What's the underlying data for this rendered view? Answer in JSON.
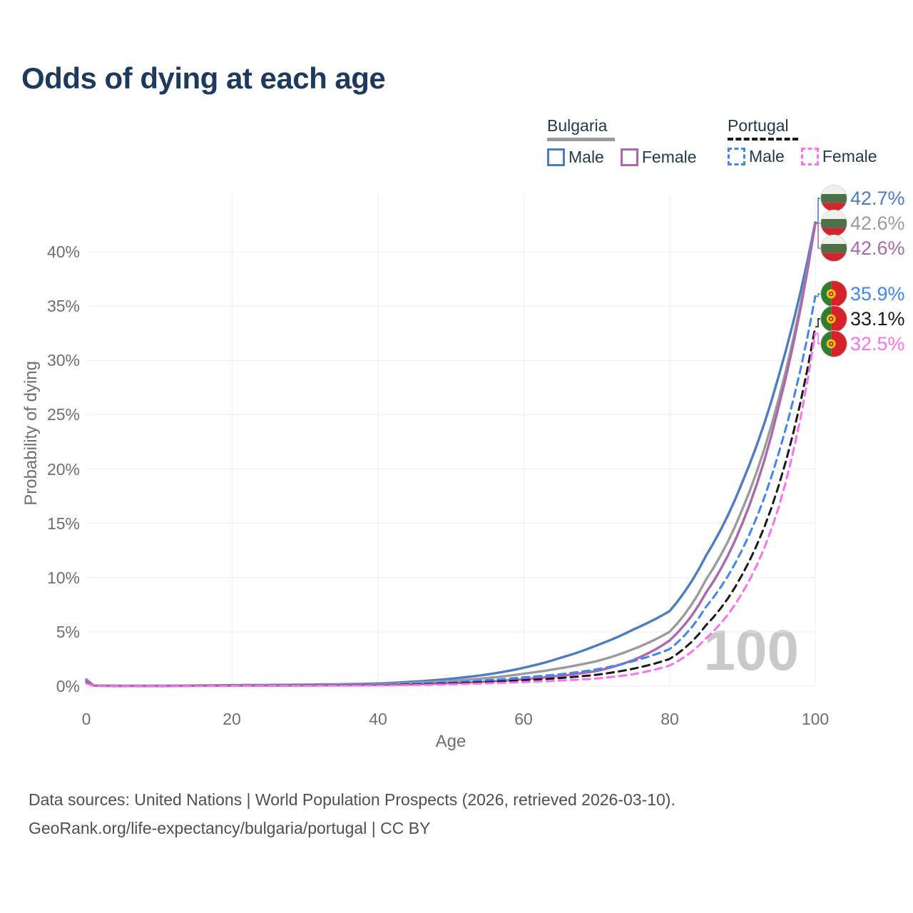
{
  "title": "Odds of dying at each age",
  "legend": {
    "groups": [
      {
        "title": "Bulgaria",
        "line_style": "solid",
        "underline_series": "bg_total",
        "items": [
          {
            "label": "Male",
            "series": "bg_male"
          },
          {
            "label": "Female",
            "series": "bg_female"
          }
        ]
      },
      {
        "title": "Portugal",
        "line_style": "dashed",
        "underline_series": "pt_total",
        "items": [
          {
            "label": "Male",
            "series": "pt_male"
          },
          {
            "label": "Female",
            "series": "pt_female"
          }
        ]
      }
    ]
  },
  "chart_data": {
    "type": "line",
    "title": "Odds of dying at each age",
    "xlabel": "Age",
    "ylabel": "Probability of dying",
    "x_ticks": [
      0,
      20,
      40,
      60,
      80,
      100
    ],
    "y_tick_labels": [
      "0%",
      "5%",
      "10%",
      "15%",
      "20%",
      "25%",
      "30%",
      "35%",
      "40%"
    ],
    "y_ticks_pct": [
      0,
      5,
      10,
      15,
      20,
      25,
      30,
      35,
      40
    ],
    "xlim": [
      0,
      100
    ],
    "ylim_pct": [
      0,
      45.3
    ],
    "grid": "on",
    "legend_position": "top-right",
    "age_indicator": "100",
    "ages": [
      0,
      1,
      5,
      10,
      15,
      20,
      25,
      30,
      35,
      40,
      45,
      50,
      55,
      60,
      65,
      70,
      75,
      80,
      85,
      90,
      95,
      100
    ],
    "series": [
      {
        "key": "bg_male",
        "name": "Bulgaria Male",
        "country": "Bulgaria",
        "sex": "Male",
        "color": "#4d7cc3",
        "dash": "solid",
        "flag": "bg",
        "end_label": "42.7%",
        "values_pct": [
          0.62,
          0.06,
          0.03,
          0.03,
          0.06,
          0.09,
          0.11,
          0.14,
          0.18,
          0.25,
          0.42,
          0.68,
          1.08,
          1.7,
          2.6,
          3.75,
          5.2,
          6.9,
          12.0,
          18.8,
          28.6,
          42.7
        ]
      },
      {
        "key": "bg_total",
        "name": "Bulgaria Total",
        "country": "Bulgaria",
        "sex": "Total",
        "color": "#9b9b9b",
        "dash": "solid",
        "flag": "bg",
        "end_label": "42.6%",
        "values_pct": [
          0.55,
          0.05,
          0.03,
          0.03,
          0.05,
          0.07,
          0.08,
          0.1,
          0.13,
          0.18,
          0.3,
          0.48,
          0.75,
          1.15,
          1.65,
          2.3,
          3.4,
          5.0,
          9.8,
          16.3,
          26.5,
          42.6
        ]
      },
      {
        "key": "bg_female",
        "name": "Bulgaria Female",
        "country": "Bulgaria",
        "sex": "Female",
        "color": "#ab68ae",
        "dash": "solid",
        "flag": "bg",
        "end_label": "42.6%",
        "values_pct": [
          0.48,
          0.05,
          0.02,
          0.02,
          0.04,
          0.05,
          0.06,
          0.07,
          0.08,
          0.11,
          0.18,
          0.28,
          0.42,
          0.65,
          0.95,
          1.4,
          2.4,
          4.2,
          8.6,
          15.0,
          25.8,
          42.6
        ]
      },
      {
        "key": "pt_male",
        "name": "Portugal Male",
        "country": "Portugal",
        "sex": "Male",
        "color": "#3f86f2",
        "dash": "dashed",
        "flag": "pt",
        "end_label": "35.9%",
        "values_pct": [
          0.3,
          0.04,
          0.02,
          0.02,
          0.04,
          0.06,
          0.07,
          0.08,
          0.1,
          0.13,
          0.22,
          0.35,
          0.55,
          0.82,
          1.1,
          1.55,
          2.3,
          3.4,
          7.3,
          12.6,
          21.5,
          35.9
        ]
      },
      {
        "key": "pt_total",
        "name": "Portugal Total",
        "country": "Portugal",
        "sex": "Total",
        "color": "#1a1a1a",
        "dash": "dashed",
        "flag": "pt",
        "end_label": "33.1%",
        "values_pct": [
          0.28,
          0.03,
          0.02,
          0.02,
          0.03,
          0.04,
          0.05,
          0.06,
          0.07,
          0.1,
          0.16,
          0.25,
          0.38,
          0.55,
          0.75,
          1.05,
          1.6,
          2.5,
          5.6,
          10.3,
          18.5,
          33.1
        ]
      },
      {
        "key": "pt_female",
        "name": "Portugal Female",
        "country": "Portugal",
        "sex": "Female",
        "color": "#fb71ef",
        "dash": "dashed",
        "flag": "pt",
        "end_label": "32.5%",
        "values_pct": [
          0.25,
          0.03,
          0.01,
          0.01,
          0.02,
          0.03,
          0.04,
          0.04,
          0.05,
          0.07,
          0.11,
          0.17,
          0.26,
          0.38,
          0.52,
          0.7,
          1.1,
          1.9,
          4.4,
          8.6,
          16.5,
          32.5
        ]
      }
    ]
  },
  "footer": {
    "line1": "Data sources: United Nations | World Population Prospects (2026, retrieved 2026-03-10).",
    "line2": "GeoRank.org/life-expectancy/bulgaria/portugal | CC BY"
  }
}
